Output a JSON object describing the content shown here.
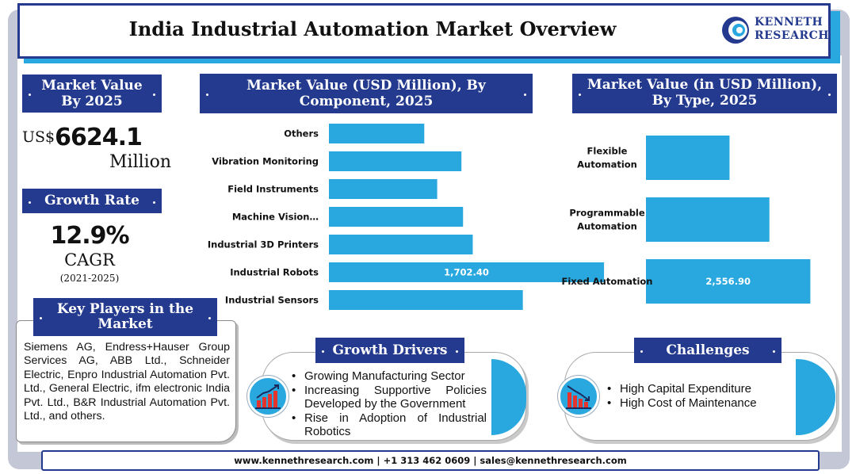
{
  "header": {
    "title": "India Industrial Automation Market Overview"
  },
  "logo": {
    "line1": "KENNETH",
    "line2": "RESEARCH"
  },
  "market_value": {
    "heading_line1": "Market Value",
    "heading_line2": "By 2025",
    "currency": "US$",
    "value": "6624.1",
    "unit": "Million"
  },
  "growth_rate": {
    "heading": "Growth Rate",
    "value": "12.9%",
    "label": "CAGR",
    "period": "(2021-2025)"
  },
  "key_players": {
    "heading_line1": "Key Players in the",
    "heading_line2": "Market",
    "text": "Siemens AG, Endress+Hauser Group Services AG, ABB Ltd., Schneider Electric, Enpro Industrial Automation Pvt. Ltd., General Electric, ifm electronic India Pvt. Ltd., B&R Industrial Automation Pvt. Ltd., and others."
  },
  "growth_drivers": {
    "heading": "Growth Drivers",
    "items": [
      "Growing Manufacturing Sector",
      "Increasing Supportive Policies Developed by the Government",
      "Rise in Adoption of Industrial Robotics"
    ]
  },
  "challenges": {
    "heading": "Challenges",
    "items": [
      "High Capital Expenditure",
      "High Cost of Maintenance"
    ]
  },
  "footer": {
    "text": "www.kennethresearch.com | +1 313 462 0609 | sales@kennethresearch.com"
  },
  "colors": {
    "navy": "#243a8f",
    "bar_blue": "#29a8e0",
    "frame_gray": "#c4c7d6"
  },
  "icons": [
    "chart-up-icon",
    "chart-down-icon",
    "kenneth-logo-icon"
  ],
  "chart_data": [
    {
      "type": "bar",
      "orientation": "horizontal",
      "title": "Market Value (USD Million), By Component, 2025",
      "title_line1": "Market Value (USD Million), By",
      "title_line2": "Component, 2025",
      "categories": [
        "Others",
        "Vibration Monitoring",
        "Field Instruments",
        "Machine Vision…",
        "Industrial 3D Printers",
        "Industrial Robots",
        "Industrial Sensors"
      ],
      "values": [
        590,
        820,
        670,
        830,
        890,
        1702.4,
        1200
      ],
      "data_labels": [
        "",
        "",
        "",
        "",
        "",
        "1,702.40",
        ""
      ],
      "xlim": [
        0,
        1800
      ],
      "grid": false,
      "legend": "none"
    },
    {
      "type": "bar",
      "orientation": "horizontal",
      "title": "Market Value (in USD Million), By Type, 2025",
      "title_line1": "Market Value (in USD Million),",
      "title_line2": "By Type, 2025",
      "categories": [
        [
          "Flexible",
          "Automation"
        ],
        [
          "Programmable",
          "Automation"
        ],
        [
          "Fixed Automation"
        ]
      ],
      "values": [
        1300,
        1920,
        2556.9
      ],
      "data_labels": [
        "",
        "",
        "2,556.90"
      ],
      "xlim": [
        0,
        2700
      ],
      "grid": false,
      "legend": "none"
    }
  ]
}
